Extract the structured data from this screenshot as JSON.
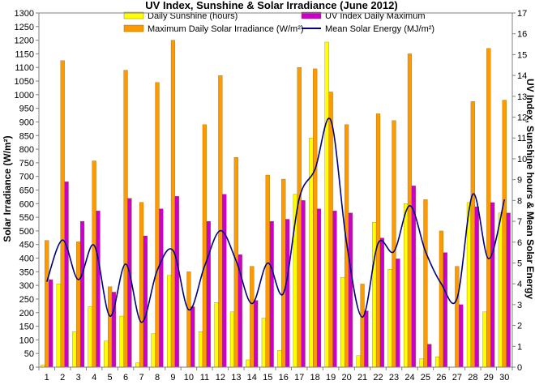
{
  "chart_data": {
    "type": "bar",
    "title": "UV Index, Sunshine & Solar Irradiance (June 2012)",
    "ylabel_left": "Solar Irradiance (W/m²)",
    "ylabel_right": "UV Index, Sunshine hours & Mean Solar Energy",
    "ylim_left": [
      0,
      1300
    ],
    "ylim_right": [
      0,
      17
    ],
    "yticks_left": [
      "0",
      "50",
      "100",
      "150",
      "200",
      "250",
      "300",
      "350",
      "400",
      "450",
      "500",
      "550",
      "600",
      "650",
      "700",
      "750",
      "800",
      "850",
      "900",
      "950",
      "1000",
      "1050",
      "1100",
      "1150",
      "1200",
      "1250",
      "1300"
    ],
    "yticks_right": [
      "0",
      "1",
      "2",
      "3",
      "4",
      "5",
      "6",
      "7",
      "8",
      "9",
      "10",
      "11",
      "12",
      "13",
      "14",
      "15",
      "16",
      "17"
    ],
    "categories": [
      "1",
      "2",
      "3",
      "4",
      "5",
      "6",
      "7",
      "8",
      "9",
      "10",
      "11",
      "12",
      "13",
      "14",
      "15",
      "16",
      "17",
      "18",
      "19",
      "20",
      "21",
      "22",
      "23",
      "24",
      "25",
      "26",
      "27",
      "28",
      "29",
      "30"
    ],
    "grid": false,
    "legend_position": "top",
    "series": [
      {
        "name": "Daily Sunshine (hours)",
        "kind": "bar",
        "axis": "right",
        "color": "#ffff00",
        "values": [
          0.1,
          4.0,
          1.7,
          2.9,
          1.25,
          2.45,
          0.2,
          1.6,
          4.4,
          0.0,
          1.7,
          3.1,
          2.65,
          0.35,
          2.35,
          0.8,
          8.3,
          11.0,
          15.6,
          4.3,
          0.55,
          6.95,
          4.7,
          7.85,
          0.4,
          0.5,
          0.0,
          7.9,
          2.65,
          7.4
        ]
      },
      {
        "name": "Maximum Daily Solar Irradiance (W/m²)",
        "kind": "bar",
        "axis": "left",
        "color": "#ff9900",
        "values": [
          465,
          1125,
          460,
          757,
          295,
          1090,
          605,
          1045,
          1200,
          350,
          890,
          1070,
          770,
          370,
          705,
          690,
          1100,
          1095,
          1010,
          890,
          305,
          930,
          905,
          1150,
          615,
          500,
          370,
          975,
          1170,
          980
        ]
      },
      {
        "name": "UV Index Daily Maximum",
        "kind": "bar",
        "axis": "right",
        "color": "#cc00cc",
        "values": [
          4.2,
          8.9,
          7.0,
          7.5,
          3.6,
          8.1,
          6.3,
          7.6,
          8.2,
          2.9,
          7.0,
          8.3,
          5.4,
          3.2,
          7.0,
          7.1,
          8.0,
          7.6,
          7.5,
          7.4,
          2.7,
          6.2,
          5.2,
          8.7,
          1.1,
          5.5,
          3.0,
          7.7,
          7.9,
          7.4
        ]
      },
      {
        "name": "Mean Solar Energy (MJ/m²)",
        "kind": "line",
        "axis": "right",
        "color": "#000080",
        "values": [
          4.1,
          6.1,
          4.2,
          5.85,
          2.45,
          4.95,
          2.15,
          4.65,
          5.6,
          2.75,
          4.85,
          6.55,
          5.1,
          3.05,
          5.0,
          3.55,
          8.1,
          9.5,
          11.85,
          5.95,
          2.4,
          5.95,
          5.55,
          7.75,
          5.55,
          4.0,
          3.3,
          8.3,
          5.2,
          8.05
        ]
      }
    ]
  }
}
